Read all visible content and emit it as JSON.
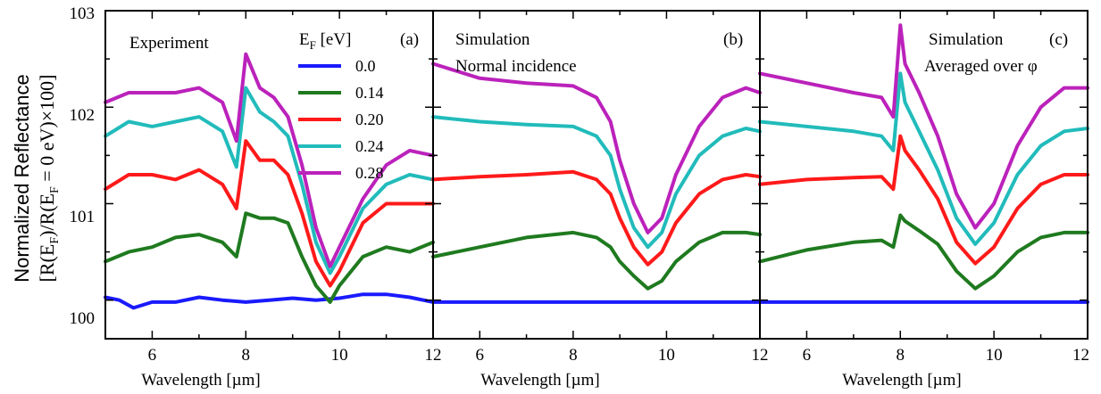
{
  "chart_data": {
    "type": "line",
    "ylabel_line1": "Normalized Reflectance",
    "ylabel_line2": "[R(E",
    "ylabel_line2_sub1": "F",
    "ylabel_line2_mid": ")/R(E",
    "ylabel_line2_sub2": "F",
    "ylabel_line2_end": " = 0 eV)×100]",
    "ylim": [
      99.6,
      103
    ],
    "yticks": [
      "100",
      "101",
      "102",
      "103"
    ],
    "xticks": [
      "6",
      "8",
      "10",
      "12"
    ],
    "legend": {
      "title_main": "E",
      "title_sub": "F",
      "title_unit": " [eV]",
      "entries": [
        "0.0",
        "0.14",
        "0.20",
        "0.24",
        "0.28"
      ],
      "colors": [
        "#1a1aff",
        "#1f7a1f",
        "#ff1a1a",
        "#22bbbb",
        "#bb22bb"
      ]
    },
    "panels": [
      {
        "label": "(a)",
        "title": "Experiment",
        "subtitle": "",
        "xlabel": "Wavelength [µm]",
        "xlim": [
          5,
          12
        ],
        "series": [
          {
            "name": "0.0",
            "x": [
              5,
              5.3,
              5.6,
              6,
              6.5,
              7,
              7.5,
              8,
              8.5,
              9,
              9.5,
              10,
              10.5,
              11,
              11.5,
              12
            ],
            "y": [
              100.03,
              100.0,
              99.92,
              99.98,
              99.98,
              100.03,
              100.0,
              99.98,
              100.0,
              100.02,
              100.0,
              100.02,
              100.06,
              100.06,
              100.03,
              99.98
            ]
          },
          {
            "name": "0.14",
            "x": [
              5,
              5.5,
              6,
              6.5,
              7,
              7.5,
              7.8,
              8,
              8.3,
              8.6,
              8.9,
              9.2,
              9.5,
              9.8,
              10.0,
              10.5,
              11,
              11.5,
              12
            ],
            "y": [
              100.4,
              100.5,
              100.55,
              100.65,
              100.68,
              100.6,
              100.45,
              100.9,
              100.85,
              100.85,
              100.8,
              100.45,
              100.15,
              99.98,
              100.15,
              100.45,
              100.55,
              100.5,
              100.6
            ]
          },
          {
            "name": "0.20",
            "x": [
              5,
              5.5,
              6,
              6.5,
              7,
              7.5,
              7.8,
              8,
              8.3,
              8.6,
              8.9,
              9.2,
              9.5,
              9.8,
              10.0,
              10.5,
              11,
              11.5,
              12
            ],
            "y": [
              101.15,
              101.3,
              101.3,
              101.25,
              101.35,
              101.2,
              100.95,
              101.65,
              101.45,
              101.45,
              101.3,
              100.9,
              100.4,
              100.15,
              100.3,
              100.8,
              101.0,
              101.0,
              101.0
            ]
          },
          {
            "name": "0.24",
            "x": [
              5,
              5.5,
              6,
              6.5,
              7,
              7.5,
              7.8,
              8,
              8.3,
              8.6,
              8.9,
              9.2,
              9.5,
              9.8,
              10.0,
              10.5,
              11,
              11.5,
              12
            ],
            "y": [
              101.7,
              101.85,
              101.8,
              101.85,
              101.9,
              101.75,
              101.38,
              102.2,
              101.95,
              101.85,
              101.7,
              101.2,
              100.6,
              100.28,
              100.45,
              100.95,
              101.2,
              101.3,
              101.25
            ]
          },
          {
            "name": "0.28",
            "x": [
              5,
              5.5,
              6,
              6.5,
              7,
              7.5,
              7.8,
              8,
              8.3,
              8.6,
              8.9,
              9.2,
              9.5,
              9.8,
              10.0,
              10.5,
              11,
              11.5,
              12
            ],
            "y": [
              102.05,
              102.15,
              102.15,
              102.15,
              102.2,
              102.05,
              101.65,
              102.55,
              102.2,
              102.1,
              101.9,
              101.4,
              100.75,
              100.35,
              100.55,
              101.05,
              101.4,
              101.55,
              101.5
            ]
          }
        ]
      },
      {
        "label": "(b)",
        "title": "Simulation",
        "subtitle": "Normal incidence",
        "xlabel": "Wavelength [µm]",
        "xlim": [
          5,
          12
        ],
        "series": [
          {
            "name": "0.0",
            "x": [
              5,
              12
            ],
            "y": [
              99.98,
              99.98
            ]
          },
          {
            "name": "0.14",
            "x": [
              5,
              6,
              7,
              8,
              8.5,
              8.8,
              9.0,
              9.3,
              9.6,
              9.9,
              10.2,
              10.7,
              11.2,
              11.7,
              12
            ],
            "y": [
              100.45,
              100.55,
              100.65,
              100.7,
              100.65,
              100.55,
              100.4,
              100.25,
              100.12,
              100.2,
              100.4,
              100.6,
              100.7,
              100.7,
              100.68
            ]
          },
          {
            "name": "0.20",
            "x": [
              5,
              6,
              7,
              8,
              8.5,
              8.8,
              9.0,
              9.3,
              9.6,
              9.9,
              10.2,
              10.7,
              11.2,
              11.7,
              12
            ],
            "y": [
              101.25,
              101.28,
              101.3,
              101.33,
              101.25,
              101.1,
              100.85,
              100.55,
              100.37,
              100.5,
              100.8,
              101.1,
              101.25,
              101.3,
              101.28
            ]
          },
          {
            "name": "0.24",
            "x": [
              5,
              6,
              7,
              8,
              8.5,
              8.8,
              9.0,
              9.3,
              9.6,
              9.9,
              10.2,
              10.7,
              11.2,
              11.7,
              12
            ],
            "y": [
              101.9,
              101.85,
              101.82,
              101.8,
              101.7,
              101.5,
              101.15,
              100.75,
              100.55,
              100.7,
              101.1,
              101.5,
              101.7,
              101.78,
              101.75
            ]
          },
          {
            "name": "0.28",
            "x": [
              5,
              6,
              7,
              8,
              8.5,
              8.8,
              9.0,
              9.3,
              9.6,
              9.9,
              10.2,
              10.7,
              11.2,
              11.7,
              12
            ],
            "y": [
              102.45,
              102.3,
              102.25,
              102.22,
              102.1,
              101.85,
              101.45,
              101.0,
              100.7,
              100.85,
              101.3,
              101.8,
              102.1,
              102.2,
              102.15
            ]
          }
        ]
      },
      {
        "label": "(c)",
        "title": "Simulation",
        "subtitle": "Averaged over φ",
        "xlabel": "Wavelength [µm]",
        "xlim": [
          5,
          12
        ],
        "series": [
          {
            "name": "0.0",
            "x": [
              5,
              12
            ],
            "y": [
              99.98,
              99.98
            ]
          },
          {
            "name": "0.14",
            "x": [
              5,
              6,
              7,
              7.6,
              7.85,
              8.0,
              8.1,
              8.4,
              8.8,
              9.2,
              9.6,
              10.0,
              10.5,
              11,
              11.5,
              12
            ],
            "y": [
              100.4,
              100.52,
              100.6,
              100.62,
              100.55,
              100.88,
              100.82,
              100.72,
              100.58,
              100.3,
              100.12,
              100.25,
              100.5,
              100.65,
              100.7,
              100.7
            ]
          },
          {
            "name": "0.20",
            "x": [
              5,
              6,
              7,
              7.6,
              7.85,
              8.0,
              8.1,
              8.4,
              8.8,
              9.2,
              9.6,
              10.0,
              10.5,
              11,
              11.5,
              12
            ],
            "y": [
              101.2,
              101.25,
              101.27,
              101.28,
              101.15,
              101.7,
              101.55,
              101.35,
              101.05,
              100.6,
              100.38,
              100.55,
              100.95,
              101.2,
              101.3,
              101.3
            ]
          },
          {
            "name": "0.24",
            "x": [
              5,
              6,
              7,
              7.6,
              7.85,
              8.0,
              8.1,
              8.4,
              8.8,
              9.2,
              9.6,
              10.0,
              10.5,
              11,
              11.5,
              12
            ],
            "y": [
              101.85,
              101.8,
              101.75,
              101.7,
              101.55,
              102.35,
              102.05,
              101.75,
              101.35,
              100.85,
              100.58,
              100.8,
              101.3,
              101.6,
              101.75,
              101.78
            ]
          },
          {
            "name": "0.28",
            "x": [
              5,
              6,
              7,
              7.6,
              7.85,
              8.0,
              8.1,
              8.4,
              8.8,
              9.2,
              9.6,
              10.0,
              10.5,
              11,
              11.5,
              12
            ],
            "y": [
              102.35,
              102.25,
              102.15,
              102.1,
              101.9,
              102.85,
              102.45,
              102.15,
              101.7,
              101.1,
              100.75,
              101.0,
              101.6,
              102.0,
              102.2,
              102.2
            ]
          }
        ]
      }
    ]
  }
}
